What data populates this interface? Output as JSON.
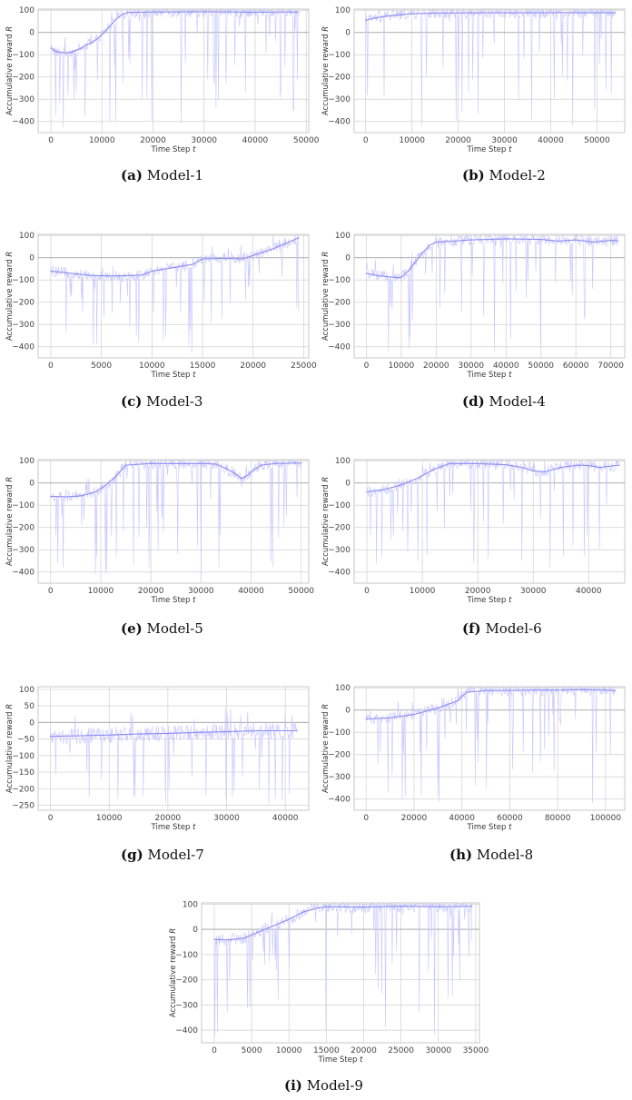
{
  "chart_data": [
    {
      "id": "a",
      "type": "line",
      "caption_label": "(a)",
      "caption_text": "Model-1",
      "xlabel": "Time Step",
      "xlabel_var": "t",
      "ylabel": "Accumulative reward",
      "ylabel_var": "R",
      "xlim": [
        -2500,
        50500
      ],
      "ylim": [
        -450,
        105
      ],
      "xticks": [
        0,
        10000,
        20000,
        30000,
        40000,
        50000
      ],
      "yticks": [
        100,
        0,
        -100,
        -200,
        -300,
        -400
      ],
      "grid": true,
      "x_max": 48500,
      "series": [
        {
          "role": "raw episode reward",
          "color": "#c7c7ff",
          "stroke": "0.6",
          "noise": "dense"
        },
        {
          "role": "smoothed reward",
          "color": "#8c8cf0",
          "x": [
            0,
            1000,
            2000,
            3000,
            4000,
            5000,
            6000,
            7000,
            8000,
            9000,
            10000,
            11000,
            12000,
            13000,
            14000,
            15000,
            20000,
            30000,
            40000,
            45000,
            48500
          ],
          "y": [
            -70,
            -85,
            -90,
            -92,
            -88,
            -80,
            -70,
            -55,
            -45,
            -30,
            -10,
            15,
            40,
            65,
            80,
            90,
            92,
            93,
            91,
            92,
            92
          ]
        }
      ]
    },
    {
      "id": "b",
      "type": "line",
      "caption_label": "(b)",
      "caption_text": "Model-2",
      "xlabel": "Time Step",
      "xlabel_var": "t",
      "ylabel": "Accumulative reward",
      "ylabel_var": "R",
      "xlim": [
        -2500,
        56000
      ],
      "ylim": [
        -450,
        105
      ],
      "xticks": [
        0,
        10000,
        20000,
        30000,
        40000,
        50000
      ],
      "yticks": [
        100,
        0,
        -100,
        -200,
        -300,
        -400
      ],
      "grid": true,
      "x_max": 54000,
      "series": [
        {
          "role": "raw episode reward",
          "color": "#c7c7ff"
        },
        {
          "role": "smoothed reward",
          "color": "#8c8cf0",
          "x": [
            0,
            2000,
            4000,
            6000,
            8000,
            10000,
            15000,
            20000,
            30000,
            40000,
            50000,
            54000
          ],
          "y": [
            55,
            65,
            72,
            76,
            80,
            84,
            87,
            88,
            89,
            89,
            89,
            89
          ]
        }
      ]
    },
    {
      "id": "c",
      "type": "line",
      "caption_label": "(c)",
      "caption_text": "Model-3",
      "xlabel": "Time Step",
      "xlabel_var": "t",
      "ylabel": "Accumulative reward",
      "ylabel_var": "R",
      "xlim": [
        -1250,
        25500
      ],
      "ylim": [
        -450,
        105
      ],
      "xticks": [
        0,
        5000,
        10000,
        15000,
        20000,
        25000
      ],
      "yticks": [
        100,
        0,
        -100,
        -200,
        -300,
        -400
      ],
      "grid": true,
      "x_max": 24500,
      "series": [
        {
          "role": "raw episode reward",
          "color": "#c7c7ff"
        },
        {
          "role": "smoothed reward",
          "color": "#8c8cf0",
          "x": [
            0,
            2000,
            4000,
            6000,
            8000,
            9000,
            10000,
            12000,
            14000,
            15000,
            17000,
            19000,
            20000,
            22000,
            23500,
            24500
          ],
          "y": [
            -60,
            -70,
            -80,
            -82,
            -80,
            -78,
            -60,
            -45,
            -30,
            -5,
            -3,
            -5,
            10,
            40,
            70,
            90
          ]
        }
      ]
    },
    {
      "id": "d",
      "type": "line",
      "caption_label": "(d)",
      "caption_text": "Model-4",
      "xlabel": "Time Step",
      "xlabel_var": "t",
      "ylabel": "Accumulative reward",
      "ylabel_var": "R",
      "xlim": [
        -3500,
        74000
      ],
      "ylim": [
        -450,
        105
      ],
      "xticks": [
        0,
        10000,
        20000,
        30000,
        40000,
        50000,
        60000,
        70000
      ],
      "yticks": [
        100,
        0,
        -100,
        -200,
        -300,
        -400
      ],
      "grid": true,
      "x_max": 72000,
      "series": [
        {
          "role": "raw episode reward",
          "color": "#c7c7ff"
        },
        {
          "role": "smoothed reward",
          "color": "#8c8cf0",
          "x": [
            0,
            3000,
            6000,
            9000,
            10000,
            12000,
            14000,
            16000,
            18000,
            20000,
            25000,
            30000,
            40000,
            50000,
            55000,
            60000,
            65000,
            70000,
            72000
          ],
          "y": [
            -70,
            -80,
            -85,
            -90,
            -88,
            -60,
            -20,
            20,
            55,
            70,
            75,
            80,
            85,
            82,
            75,
            80,
            70,
            78,
            76
          ]
        }
      ]
    },
    {
      "id": "e",
      "type": "line",
      "caption_label": "(e)",
      "caption_text": "Model-5",
      "xlabel": "Time Step",
      "xlabel_var": "t",
      "ylabel": "Accumulative reward",
      "ylabel_var": "R",
      "xlim": [
        -2500,
        51500
      ],
      "ylim": [
        -450,
        105
      ],
      "xticks": [
        0,
        10000,
        20000,
        30000,
        40000,
        50000
      ],
      "yticks": [
        100,
        0,
        -100,
        -200,
        -300,
        -400
      ],
      "grid": true,
      "x_max": 50000,
      "series": [
        {
          "role": "raw episode reward",
          "color": "#c7c7ff"
        },
        {
          "role": "smoothed reward",
          "color": "#8c8cf0",
          "x": [
            0,
            3000,
            6000,
            9000,
            11000,
            13000,
            15000,
            20000,
            25000,
            30000,
            33000,
            35000,
            37000,
            38000,
            39000,
            40000,
            42000,
            45000,
            50000
          ],
          "y": [
            -60,
            -62,
            -58,
            -40,
            -10,
            30,
            80,
            88,
            87,
            88,
            85,
            65,
            40,
            20,
            30,
            50,
            80,
            88,
            90
          ]
        }
      ]
    },
    {
      "id": "f",
      "type": "line",
      "caption_label": "(f)",
      "caption_text": "Model-6",
      "xlabel": "Time Step",
      "xlabel_var": "t",
      "ylabel": "Accumulative reward",
      "ylabel_var": "R",
      "xlim": [
        -2300,
        46500
      ],
      "ylim": [
        -450,
        105
      ],
      "xticks": [
        0,
        10000,
        20000,
        30000,
        40000
      ],
      "yticks": [
        100,
        0,
        -100,
        -200,
        -300,
        -400
      ],
      "grid": true,
      "x_max": 45500,
      "series": [
        {
          "role": "raw episode reward",
          "color": "#c7c7ff"
        },
        {
          "role": "smoothed reward",
          "color": "#8c8cf0",
          "x": [
            0,
            3000,
            6000,
            9000,
            12000,
            15000,
            20000,
            25000,
            28000,
            30000,
            32000,
            35000,
            38000,
            40000,
            42000,
            45500
          ],
          "y": [
            -40,
            -30,
            -10,
            20,
            60,
            88,
            87,
            82,
            70,
            55,
            50,
            70,
            80,
            78,
            70,
            80
          ]
        }
      ]
    },
    {
      "id": "g",
      "type": "line",
      "caption_label": "(g)",
      "caption_text": "Model-7",
      "xlabel": "Time Step",
      "xlabel_var": "t",
      "ylabel": "Accumulative reward",
      "ylabel_var": "R",
      "xlim": [
        -2100,
        44000
      ],
      "ylim": [
        -265,
        108
      ],
      "xticks": [
        0,
        10000,
        20000,
        30000,
        40000
      ],
      "yticks": [
        100,
        50,
        0,
        -50,
        -100,
        -150,
        -200,
        -250
      ],
      "grid": true,
      "x_max": 42000,
      "series": [
        {
          "role": "raw episode reward",
          "color": "#c7c7ff"
        },
        {
          "role": "smoothed reward",
          "color": "#8c8cf0",
          "x": [
            0,
            5000,
            10000,
            15000,
            20000,
            25000,
            30000,
            35000,
            40000,
            42000
          ],
          "y": [
            -42,
            -40,
            -38,
            -35,
            -33,
            -30,
            -28,
            -25,
            -25,
            -25
          ]
        }
      ]
    },
    {
      "id": "h",
      "type": "line",
      "caption_label": "(h)",
      "caption_text": "Model-8",
      "xlabel": "Time Step",
      "xlabel_var": "t",
      "ylabel": "Accumulative reward",
      "ylabel_var": "R",
      "xlim": [
        -5000,
        108000
      ],
      "ylim": [
        -450,
        105
      ],
      "xticks": [
        0,
        20000,
        40000,
        60000,
        80000,
        100000
      ],
      "yticks": [
        100,
        0,
        -100,
        -200,
        -300,
        -400
      ],
      "grid": true,
      "x_max": 104000,
      "series": [
        {
          "role": "raw episode reward",
          "color": "#c7c7ff"
        },
        {
          "role": "smoothed reward",
          "color": "#8c8cf0",
          "x": [
            0,
            10000,
            20000,
            30000,
            38000,
            42000,
            50000,
            60000,
            70000,
            80000,
            90000,
            100000,
            104000
          ],
          "y": [
            -40,
            -35,
            -20,
            10,
            40,
            80,
            88,
            88,
            90,
            90,
            92,
            90,
            88
          ]
        }
      ]
    },
    {
      "id": "i",
      "type": "line",
      "caption_label": "(i)",
      "caption_text": "Model-9",
      "xlabel": "Time Step",
      "xlabel_var": "t",
      "ylabel": "Accumulative reward",
      "ylabel_var": "R",
      "xlim": [
        -1700,
        35500
      ],
      "ylim": [
        -450,
        105
      ],
      "xticks": [
        0,
        5000,
        10000,
        15000,
        20000,
        25000,
        30000,
        35000
      ],
      "yticks": [
        100,
        0,
        -100,
        -200,
        -300,
        -400
      ],
      "grid": true,
      "x_max": 34500,
      "series": [
        {
          "role": "raw episode reward",
          "color": "#c7c7ff"
        },
        {
          "role": "smoothed reward",
          "color": "#8c8cf0",
          "x": [
            0,
            2000,
            4000,
            6000,
            8000,
            10000,
            12000,
            14000,
            15000,
            20000,
            25000,
            30000,
            34500
          ],
          "y": [
            -40,
            -42,
            -35,
            -10,
            15,
            40,
            70,
            85,
            90,
            88,
            92,
            90,
            92
          ]
        }
      ]
    }
  ]
}
